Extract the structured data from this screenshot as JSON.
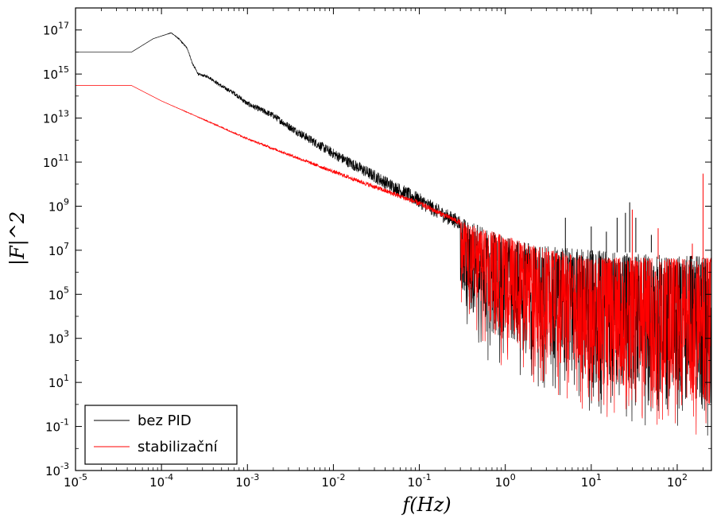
{
  "chart_data": {
    "type": "line",
    "title": "",
    "xlabel": "f(Hz)",
    "ylabel": "|F|^2",
    "x_scale": "log",
    "y_scale": "log",
    "xlim": [
      1e-05,
      250
    ],
    "ylim": [
      0.001,
      1e+18
    ],
    "x_ticks": [
      {
        "base": "10",
        "exp": "-5",
        "value": 1e-05
      },
      {
        "base": "10",
        "exp": "-4",
        "value": 0.0001
      },
      {
        "base": "10",
        "exp": "-3",
        "value": 0.001
      },
      {
        "base": "10",
        "exp": "-2",
        "value": 0.01
      },
      {
        "base": "10",
        "exp": "-1",
        "value": 0.1
      },
      {
        "base": "10",
        "exp": "0",
        "value": 1
      },
      {
        "base": "10",
        "exp": "1",
        "value": 10
      },
      {
        "base": "10",
        "exp": "2",
        "value": 100
      }
    ],
    "y_ticks": [
      {
        "base": "10",
        "exp": "-3",
        "value": 0.001
      },
      {
        "base": "10",
        "exp": "-1",
        "value": 0.1
      },
      {
        "base": "10",
        "exp": "1",
        "value": 10.0
      },
      {
        "base": "10",
        "exp": "3",
        "value": 1000.0
      },
      {
        "base": "10",
        "exp": "5",
        "value": 100000.0
      },
      {
        "base": "10",
        "exp": "7",
        "value": 10000000.0
      },
      {
        "base": "10",
        "exp": "9",
        "value": 1000000000.0
      },
      {
        "base": "10",
        "exp": "11",
        "value": 100000000000.0
      },
      {
        "base": "10",
        "exp": "13",
        "value": 10000000000000.0
      },
      {
        "base": "10",
        "exp": "15",
        "value": 1000000000000000.0
      },
      {
        "base": "10",
        "exp": "17",
        "value": 1e+17
      }
    ],
    "grid": false,
    "legend_position": "bottom-left",
    "series": [
      {
        "name": "bez PID",
        "color": "#000000",
        "x": [
          1e-05,
          4.5e-05,
          8e-05,
          0.00013,
          0.00016,
          0.0002,
          0.00023,
          0.00027,
          0.00035,
          0.0005,
          0.0007,
          0.001,
          0.002,
          0.003,
          0.005,
          0.01,
          0.02,
          0.03,
          0.05,
          0.1,
          0.2,
          0.5,
          1,
          2,
          3,
          5,
          10,
          20,
          30,
          50,
          100,
          250
        ],
        "y": [
          1e+16,
          1e+16,
          4e+16,
          7.5e+16,
          4e+16,
          1.5e+16,
          3000000000000000.0,
          1000000000000000.0,
          800000000000000.0,
          300000000000000.0,
          150000000000000.0,
          50000000000000.0,
          15000000000000.0,
          5000000000000.0,
          1500000000000.0,
          300000000000.0,
          70000000000.0,
          30000000000.0,
          10000000000.0,
          2500000000.0,
          500000000.0,
          100000000.0,
          30000000.0,
          15000000.0,
          12000000.0,
          10000000.0,
          8000000.0,
          6000000.0,
          5500000.0,
          5000000.0,
          4500000.0,
          4000000.0
        ],
        "noise_floor": [
          50000.0,
          500.0,
          10,
          1
        ]
      },
      {
        "name": "stabilizační",
        "color": "#ff0000",
        "x": [
          1e-05,
          4.5e-05,
          0.0001,
          0.001,
          0.01,
          0.1,
          0.3,
          0.5,
          1,
          2,
          10,
          100,
          250
        ],
        "y": [
          300000000000000.0,
          300000000000000.0,
          60000000000000.0,
          1200000000000.0,
          40000000000.0,
          1500000000.0,
          200000000.0,
          90000000.0,
          40000000.0,
          15000000.0,
          4000000.0,
          4000000.0,
          4000000.0
        ],
        "noise_floor": [
          500000.0,
          1000.0,
          10.0,
          1
        ]
      }
    ]
  }
}
